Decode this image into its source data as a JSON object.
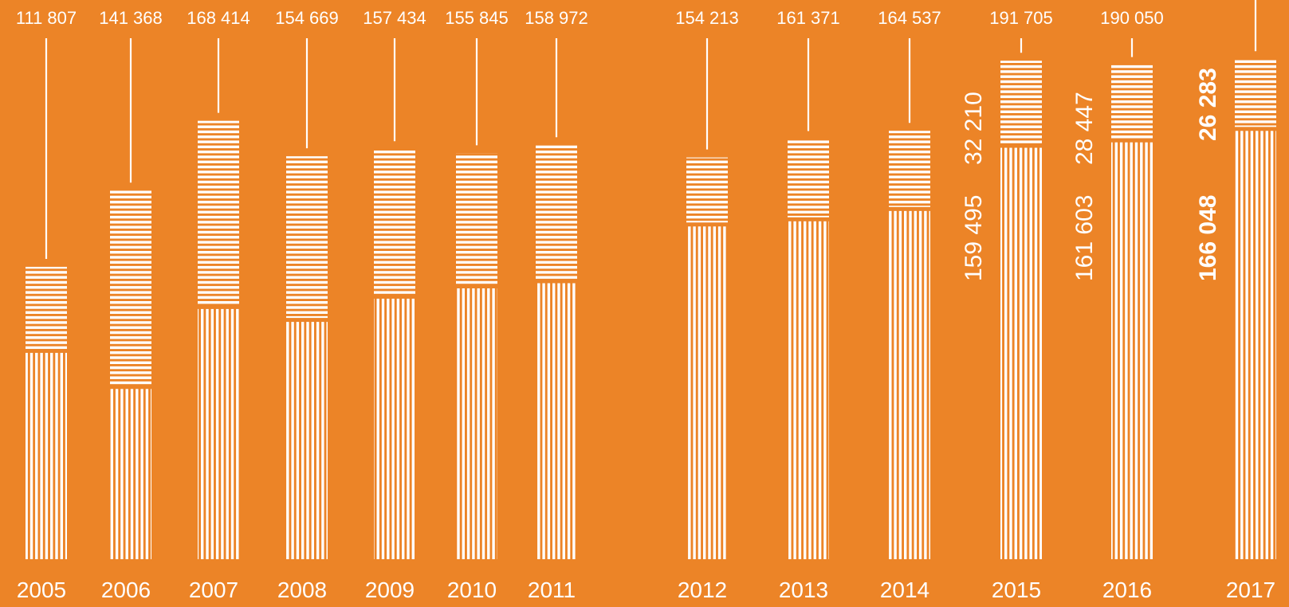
{
  "chart_data": {
    "type": "bar",
    "stacked": true,
    "categories": [
      "2005",
      "2006",
      "2007",
      "2008",
      "2009",
      "2010",
      "2011",
      "2012",
      "2013",
      "2014",
      "2015",
      "2016",
      "2017"
    ],
    "totals": [
      "111 807",
      "141 368",
      "168 414",
      "154 669",
      "157 434",
      "155 845",
      "158 972",
      "154 213",
      "161 371",
      "164 537",
      "191 705",
      "190 050",
      ""
    ],
    "series": [
      {
        "values": [
          80000,
          66000,
          97000,
          92000,
          101000,
          105000,
          107000,
          129000,
          131000,
          135000,
          159495,
          161603,
          166048
        ]
      },
      {
        "values": [
          31807,
          75368,
          71414,
          62669,
          56434,
          50845,
          51972,
          25213,
          30371,
          29537,
          32210,
          28447,
          26283
        ]
      }
    ],
    "side_labels": [
      {
        "year": "2015",
        "lower": "159 495",
        "upper": "32 210",
        "bold": false
      },
      {
        "year": "2016",
        "lower": "161 603",
        "upper": "28 447",
        "bold": false
      },
      {
        "year": "2017",
        "lower": "166 048",
        "upper": "26 283",
        "bold": true
      }
    ],
    "ylim": [
      0,
      210000
    ],
    "legend": "none",
    "grid": false,
    "colors": {
      "background": "#EC8427",
      "bars": "#FFFFFF"
    }
  }
}
